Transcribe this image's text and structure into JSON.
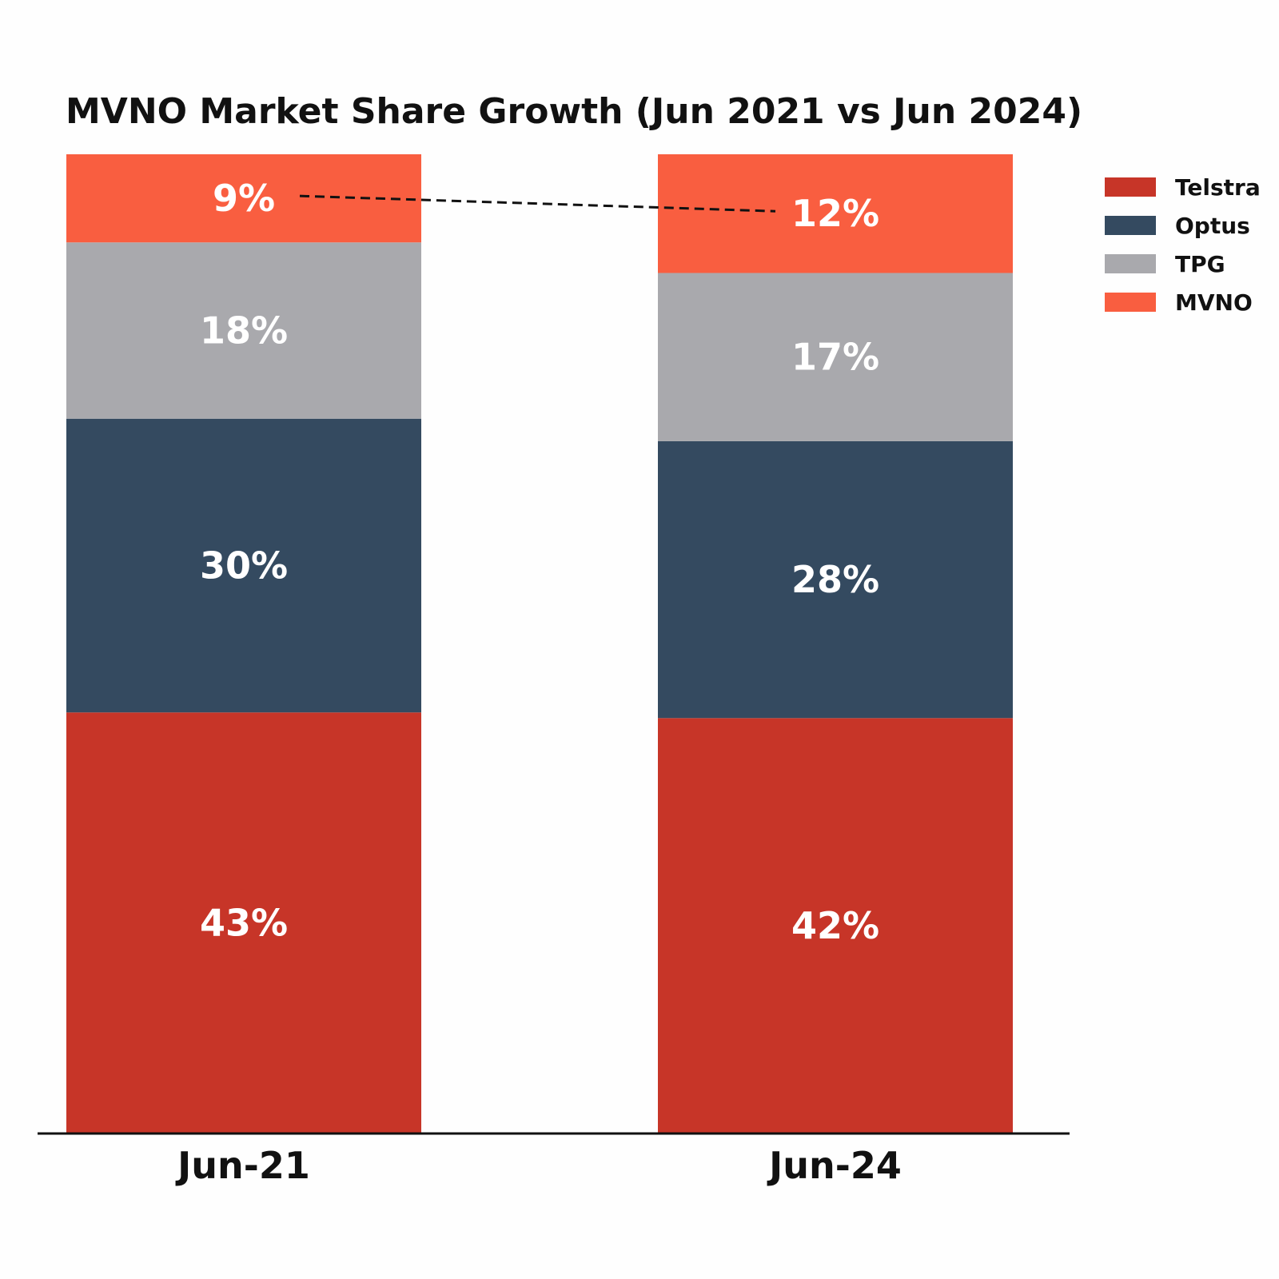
{
  "chart_data": {
    "type": "bar",
    "stacked": true,
    "title": "MVNO Market Share Growth (Jun 2021 vs Jun 2024)",
    "categories": [
      "Jun-21",
      "Jun-24"
    ],
    "series": [
      {
        "name": "Telstra",
        "color": "#c73528",
        "values": [
          43,
          42
        ],
        "labels": [
          "43%",
          "42%"
        ]
      },
      {
        "name": "Optus",
        "color": "#344a60",
        "values": [
          30,
          28
        ],
        "labels": [
          "30%",
          "28%"
        ]
      },
      {
        "name": "TPG",
        "color": "#a9a9ad",
        "values": [
          18,
          17
        ],
        "labels": [
          "18%",
          "17%"
        ]
      },
      {
        "name": "MVNO",
        "color": "#f95e40",
        "values": [
          9,
          12
        ],
        "labels": [
          "9%",
          "12%"
        ]
      }
    ],
    "ylim": [
      0,
      100
    ],
    "xlabel": "",
    "ylabel": "",
    "grid": false,
    "legend_position": "top-right",
    "annotation": "dashed line connecting MVNO share 9% to 12%"
  }
}
